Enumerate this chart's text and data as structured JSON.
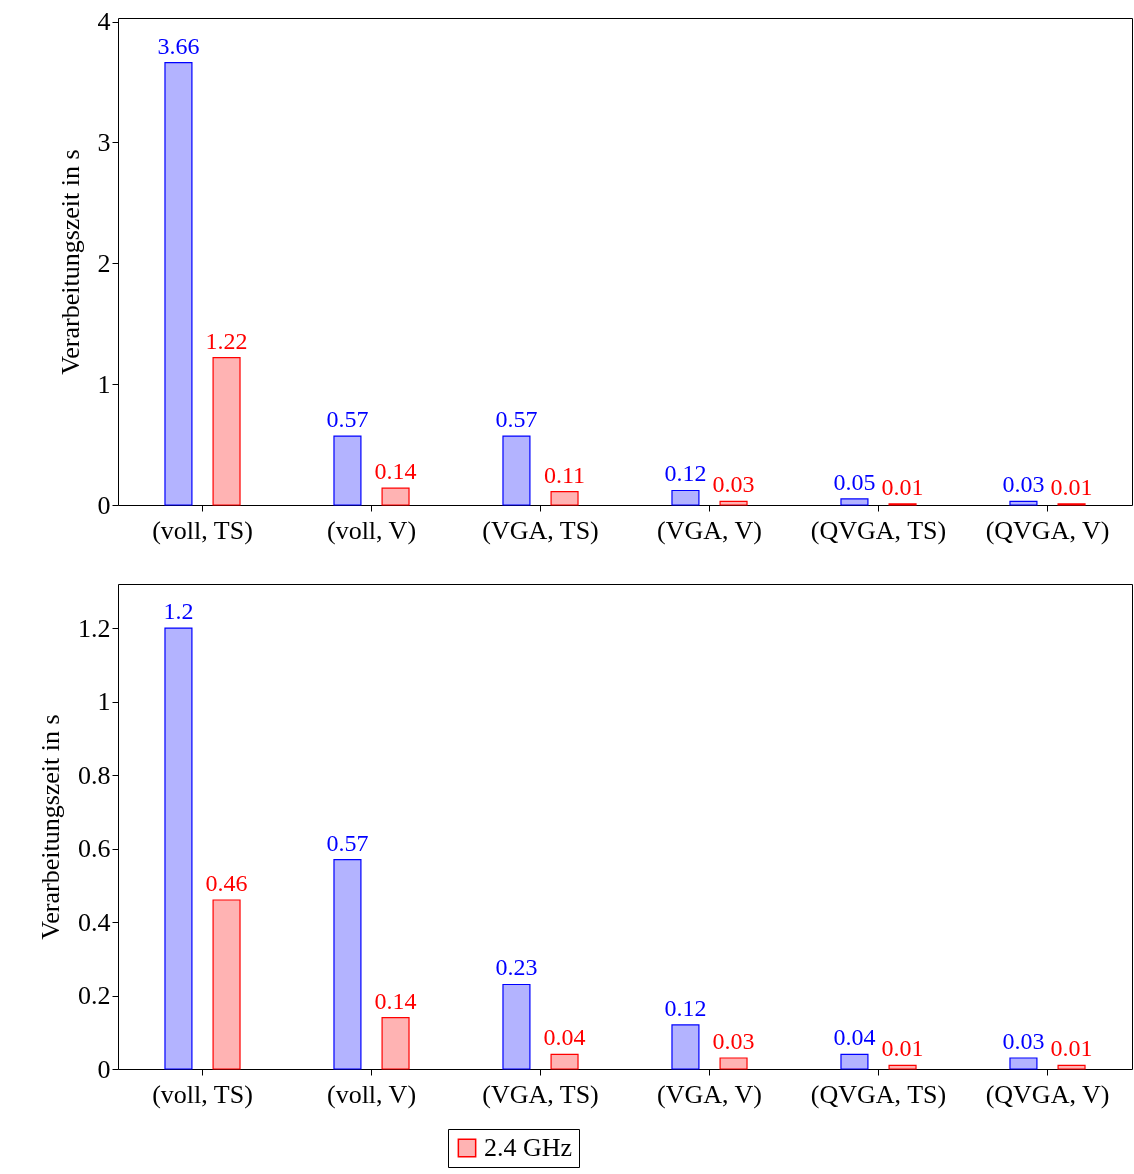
{
  "chart_data": [
    {
      "type": "bar",
      "ylabel": "Verarbeitungszeit in s",
      "categories": [
        "(voll, TS)",
        "(voll, V)",
        "(VGA, TS)",
        "(VGA, V)",
        "(QVGA, TS)",
        "(QVGA, V)"
      ],
      "series": [
        {
          "color": "#b3b3ff",
          "values": [
            3.66,
            0.57,
            0.57,
            0.12,
            0.05,
            0.03
          ]
        },
        {
          "color": "#ffb3b3",
          "values": [
            1.22,
            0.14,
            0.11,
            0.03,
            0.01,
            0.01
          ]
        }
      ],
      "ylim": [
        0,
        4.03
      ],
      "yticks": [
        0,
        1,
        2,
        3,
        4
      ],
      "data_labels": true
    },
    {
      "type": "bar",
      "ylabel": "Verarbeitungszeit in s",
      "categories": [
        "(voll, TS)",
        "(voll, V)",
        "(VGA, TS)",
        "(VGA, V)",
        "(QVGA, TS)",
        "(QVGA, V)"
      ],
      "series": [
        {
          "color": "#b3b3ff",
          "values": [
            1.2,
            0.57,
            0.23,
            0.12,
            0.04,
            0.03
          ]
        },
        {
          "name": "2.4 GHz",
          "color": "#ffb3b3",
          "values": [
            0.46,
            0.14,
            0.04,
            0.03,
            0.01,
            0.01
          ]
        }
      ],
      "ylim": [
        0,
        1.32
      ],
      "yticks": [
        0,
        0.2,
        0.4,
        0.6,
        0.8,
        1,
        1.2
      ],
      "data_labels": true,
      "legend": "bottom"
    }
  ]
}
